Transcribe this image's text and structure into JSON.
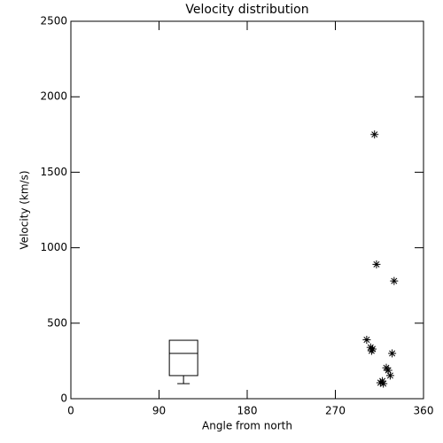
{
  "chart_data": {
    "type": "scatter",
    "title": "Velocity distribution",
    "x_label": "Angle from north",
    "y_label": "Velocity (km/s)",
    "xlim": [
      0,
      360
    ],
    "xticks": [
      0,
      90,
      180,
      270,
      360
    ],
    "ylim": [
      0,
      2500
    ],
    "yticks": [
      0,
      500,
      1000,
      1500,
      2000,
      2500
    ],
    "color": "#000000",
    "x": [
      310,
      312,
      330,
      302,
      306,
      307,
      308,
      328,
      322,
      324,
      326,
      318,
      316,
      319
    ],
    "values": [
      1750,
      890,
      780,
      390,
      340,
      317,
      329,
      300,
      205,
      188,
      153,
      117,
      106,
      100
    ],
    "box": {
      "x": 115,
      "min": 100,
      "q1": 153,
      "median": 300,
      "q3": 387
    }
  }
}
